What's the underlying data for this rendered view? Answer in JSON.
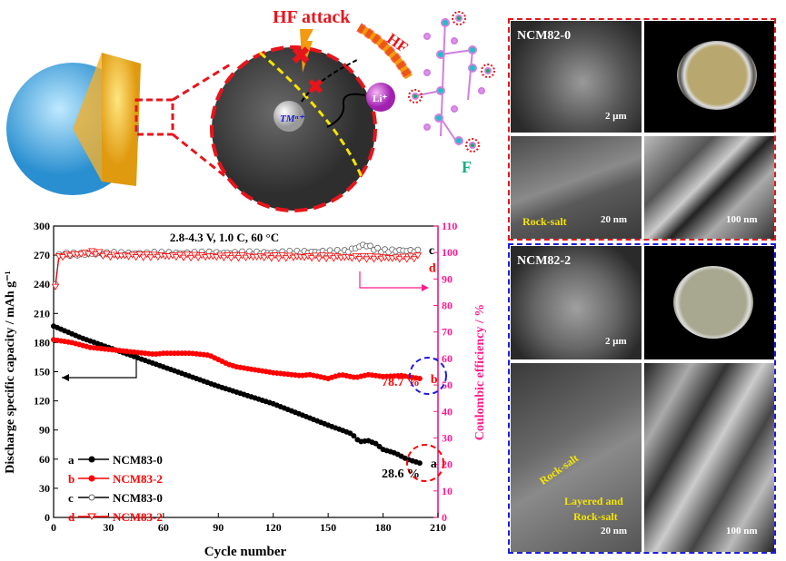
{
  "schematic": {
    "hf_attack_label": "HF attack",
    "hf_label": "HF",
    "tm_label": "TMⁿ⁺",
    "li_label": "Li⁺",
    "f_label": "F"
  },
  "micrographs": {
    "sample1": {
      "name": "NCM82-0",
      "sem_scale": "2 μm",
      "tem_scale": "20 nm",
      "tem_annotation": "Rock-salt",
      "stem_scale": "100 nm",
      "frame_color": "#e8141b"
    },
    "sample2": {
      "name": "NCM82-2",
      "sem_scale": "2 μm",
      "tem_scale": "20 nm",
      "tem_annotation_1": "Rock-salt",
      "tem_annotation_2": "Layered and",
      "tem_annotation_3": "Rock-salt",
      "stem_scale": "100 nm",
      "frame_color": "#1a1ae8"
    }
  },
  "chart_data": {
    "type": "line",
    "title": "2.8-4.3 V, 1.0 C, 60 °C",
    "xlabel": "Cycle number",
    "ylabel": "Discharge specific capacity / mAh g⁻¹",
    "y2label": "Coulombic efficiency / %",
    "xlim": [
      0,
      210
    ],
    "ylim": [
      0,
      300
    ],
    "y2lim": [
      0,
      110
    ],
    "xticks": [
      0,
      30,
      60,
      90,
      120,
      150,
      180,
      210
    ],
    "yticks": [
      0,
      30,
      60,
      90,
      120,
      150,
      180,
      210,
      240,
      270,
      300
    ],
    "y2ticks": [
      0,
      10,
      20,
      30,
      40,
      50,
      60,
      70,
      80,
      90,
      100,
      110
    ],
    "grid": false,
    "legend_position": "bottom-left",
    "series": [
      {
        "key": "a",
        "name": "NCM83-0",
        "axis": "left",
        "color": "#000000",
        "marker": "filled-circle",
        "x": [
          0,
          15,
          30,
          60,
          90,
          120,
          150,
          163,
          167,
          172,
          176,
          180,
          187,
          193,
          200
        ],
        "y": [
          197,
          185,
          175,
          155,
          135,
          117,
          95,
          86,
          78,
          79,
          76,
          70,
          66,
          60,
          56
        ]
      },
      {
        "key": "b",
        "name": "NCM83-2",
        "axis": "left",
        "color": "#ff0000",
        "marker": "filled-circle",
        "x": [
          0,
          10,
          20,
          40,
          55,
          60,
          75,
          85,
          95,
          100,
          110,
          120,
          135,
          140,
          150,
          157,
          165,
          172,
          180,
          190,
          200
        ],
        "y": [
          183,
          180,
          175,
          171,
          168,
          169,
          169,
          167,
          158,
          155,
          152,
          149,
          146,
          147,
          143,
          147,
          144,
          147,
          145,
          146,
          143
        ]
      },
      {
        "key": "c",
        "name": "NCM83-0",
        "axis": "right",
        "color": "#000000",
        "marker": "open-circle",
        "x": [
          1,
          3,
          30,
          60,
          90,
          120,
          140,
          160,
          170,
          175,
          180,
          190,
          200
        ],
        "y": [
          88,
          99.3,
          99.6,
          99.7,
          99.8,
          99.9,
          100.2,
          100.4,
          103,
          101.5,
          100.6,
          100.8,
          100.5
        ]
      },
      {
        "key": "d",
        "name": "NCM83-2",
        "axis": "right",
        "color": "#ff0000",
        "marker": "open-triangle-down",
        "x": [
          1,
          3,
          22,
          30,
          60,
          90,
          120,
          150,
          170,
          190,
          200
        ],
        "y": [
          87,
          98.5,
          100,
          98.7,
          98.6,
          98.4,
          98.3,
          98.2,
          98.0,
          97.8,
          98.3
        ]
      }
    ],
    "annotations": {
      "retention_a": "28.6 %",
      "retention_b": "78.7 %"
    }
  }
}
